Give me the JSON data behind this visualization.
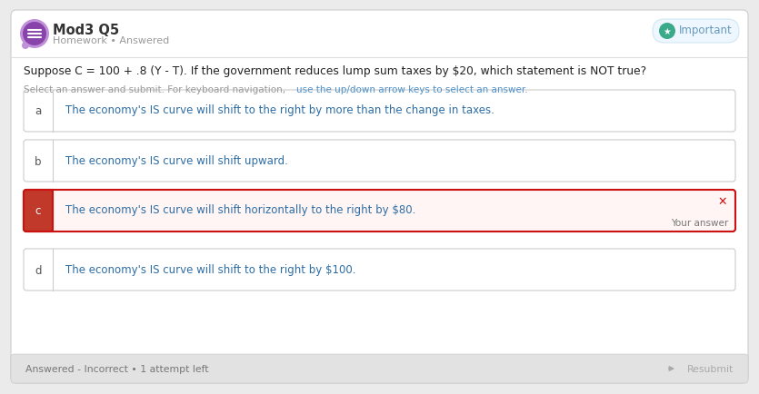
{
  "title": "Mod3 Q5",
  "subtitle": "Homework • Answered",
  "question": "Suppose C = 100 + .8 (Y - T). If the government reduces lump sum taxes by $20, which statement is NOT true?",
  "instruction": "Select an answer and submit. For keyboard navigation, use the up/down arrow keys to select an answer.",
  "options": [
    {
      "label": "a",
      "text": "The economy's IS curve will shift to the right by more than the change in taxes.",
      "selected": false,
      "incorrect": false
    },
    {
      "label": "b",
      "text": "The economy's IS curve will shift upward.",
      "selected": false,
      "incorrect": false
    },
    {
      "label": "c",
      "text": "The economy's IS curve will shift horizontally to the right by $80.",
      "selected": true,
      "incorrect": true
    },
    {
      "label": "d",
      "text": "The economy's IS curve will shift to the right by $100.",
      "selected": false,
      "incorrect": false
    }
  ],
  "footer_left": "Answered - Incorrect • 1 attempt left",
  "footer_right": "Resubmit",
  "important_label": "Important",
  "bg_color": "#ebebeb",
  "card_bg": "#ffffff",
  "footer_bg": "#e2e2e2",
  "option_border": "#cccccc",
  "selected_bg": "#fff5f5",
  "selected_border": "#cc1111",
  "selected_label_bg": "#c0392b",
  "label_bg": "#ffffff",
  "option_text_color": "#2e6da4",
  "label_text_color": "#555555",
  "title_color": "#333333",
  "subtitle_color": "#999999",
  "question_color": "#222222",
  "instruction_color": "#aaaaaa",
  "footer_text_color": "#777777",
  "important_bg": "#eef7ff",
  "important_border": "#d0e8f0",
  "important_icon_bg": "#3aaa8a",
  "important_text": "#6699bb",
  "resubmit_color": "#aaaaaa",
  "incorrect_x_color": "#cc1111",
  "your_answer_color": "#777777",
  "icon_color": "#8844aa",
  "icon_ring_color": "#c090d8"
}
